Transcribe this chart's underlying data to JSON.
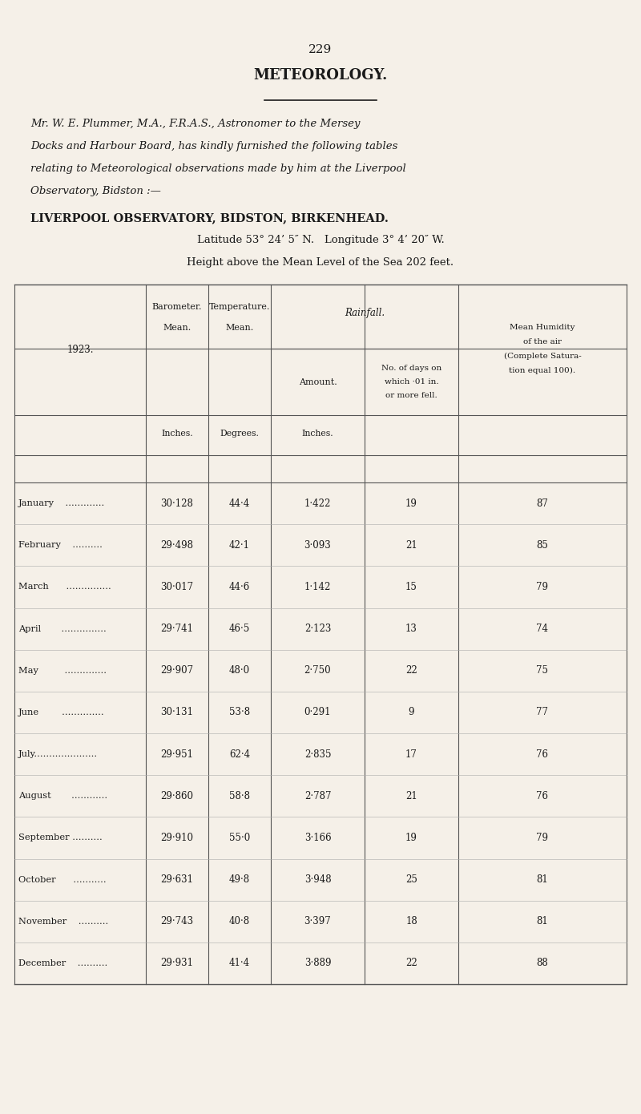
{
  "page_number": "229",
  "section_title": "METEOROLOGY.",
  "intro_text": [
    "Mr. W. E. Plummer, M.A., F.R.A.S., Astronomer to the Mersey",
    "Docks and Harbour Board, has kindly furnished the following tables",
    "relating to Meteorological observations made by him at the Liverpool",
    "Observatory, Bidston :—"
  ],
  "obs_title": "LIVERPOOL OBSERVATORY, BIDSTON, BIRKENHEAD.",
  "lat_lon": "Latitude 53° 24’ 5″ N.   Longitude 3° 4’ 20″ W.",
  "height": "Height above the Mean Level of the Sea 202 feet.",
  "year_label": "1923.",
  "months_plain": [
    "January",
    "February",
    "March",
    "April",
    "May",
    "June",
    "July",
    "August",
    "September",
    "October",
    "November",
    "December"
  ],
  "barometer": [
    30.128,
    29.498,
    30.017,
    29.741,
    29.907,
    30.131,
    29.951,
    29.86,
    29.91,
    29.631,
    29.743,
    29.931
  ],
  "temperature": [
    44.4,
    42.1,
    44.6,
    46.5,
    48.0,
    53.8,
    62.4,
    58.8,
    55.0,
    49.8,
    40.8,
    41.4
  ],
  "rainfall_amount": [
    1.422,
    3.093,
    1.142,
    2.123,
    2.75,
    0.291,
    2.835,
    2.787,
    3.166,
    3.948,
    3.397,
    3.889
  ],
  "rainfall_days": [
    19,
    21,
    15,
    13,
    22,
    9,
    17,
    21,
    19,
    25,
    18,
    22
  ],
  "humidity": [
    87,
    85,
    79,
    74,
    75,
    77,
    76,
    76,
    79,
    81,
    81,
    88
  ],
  "bg_color": "#f5f0e8",
  "text_color": "#1a1a1a",
  "line_color": "#555555"
}
